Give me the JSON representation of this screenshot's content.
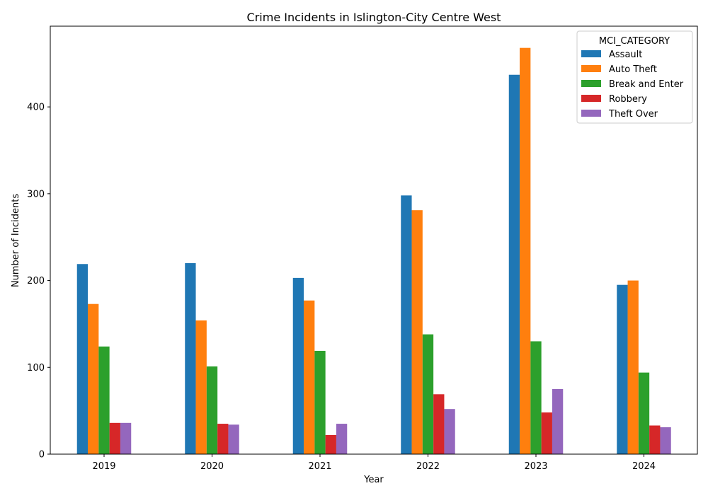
{
  "chart_data": {
    "type": "bar",
    "title": "Crime Incidents in Islington-City Centre West",
    "xlabel": "Year",
    "ylabel": "Number of Incidents",
    "ylim": [
      0,
      493
    ],
    "yticks": [
      0,
      100,
      200,
      300,
      400
    ],
    "grid": false,
    "legend": {
      "title": "MCI_CATEGORY",
      "placement": "top-right"
    },
    "categories": [
      "2019",
      "2020",
      "2021",
      "2022",
      "2023",
      "2024"
    ],
    "series": [
      {
        "name": "Assault",
        "color": "#1f77b4",
        "values": [
          219,
          220,
          203,
          298,
          437,
          195
        ]
      },
      {
        "name": "Auto Theft",
        "color": "#ff7f0e",
        "values": [
          173,
          154,
          177,
          281,
          468,
          200
        ]
      },
      {
        "name": "Break and Enter",
        "color": "#2ca02c",
        "values": [
          124,
          101,
          119,
          138,
          130,
          94
        ]
      },
      {
        "name": "Robbery",
        "color": "#d62728",
        "values": [
          36,
          35,
          22,
          69,
          48,
          33
        ]
      },
      {
        "name": "Theft Over",
        "color": "#9467bd",
        "values": [
          36,
          34,
          35,
          52,
          75,
          31
        ]
      }
    ]
  }
}
